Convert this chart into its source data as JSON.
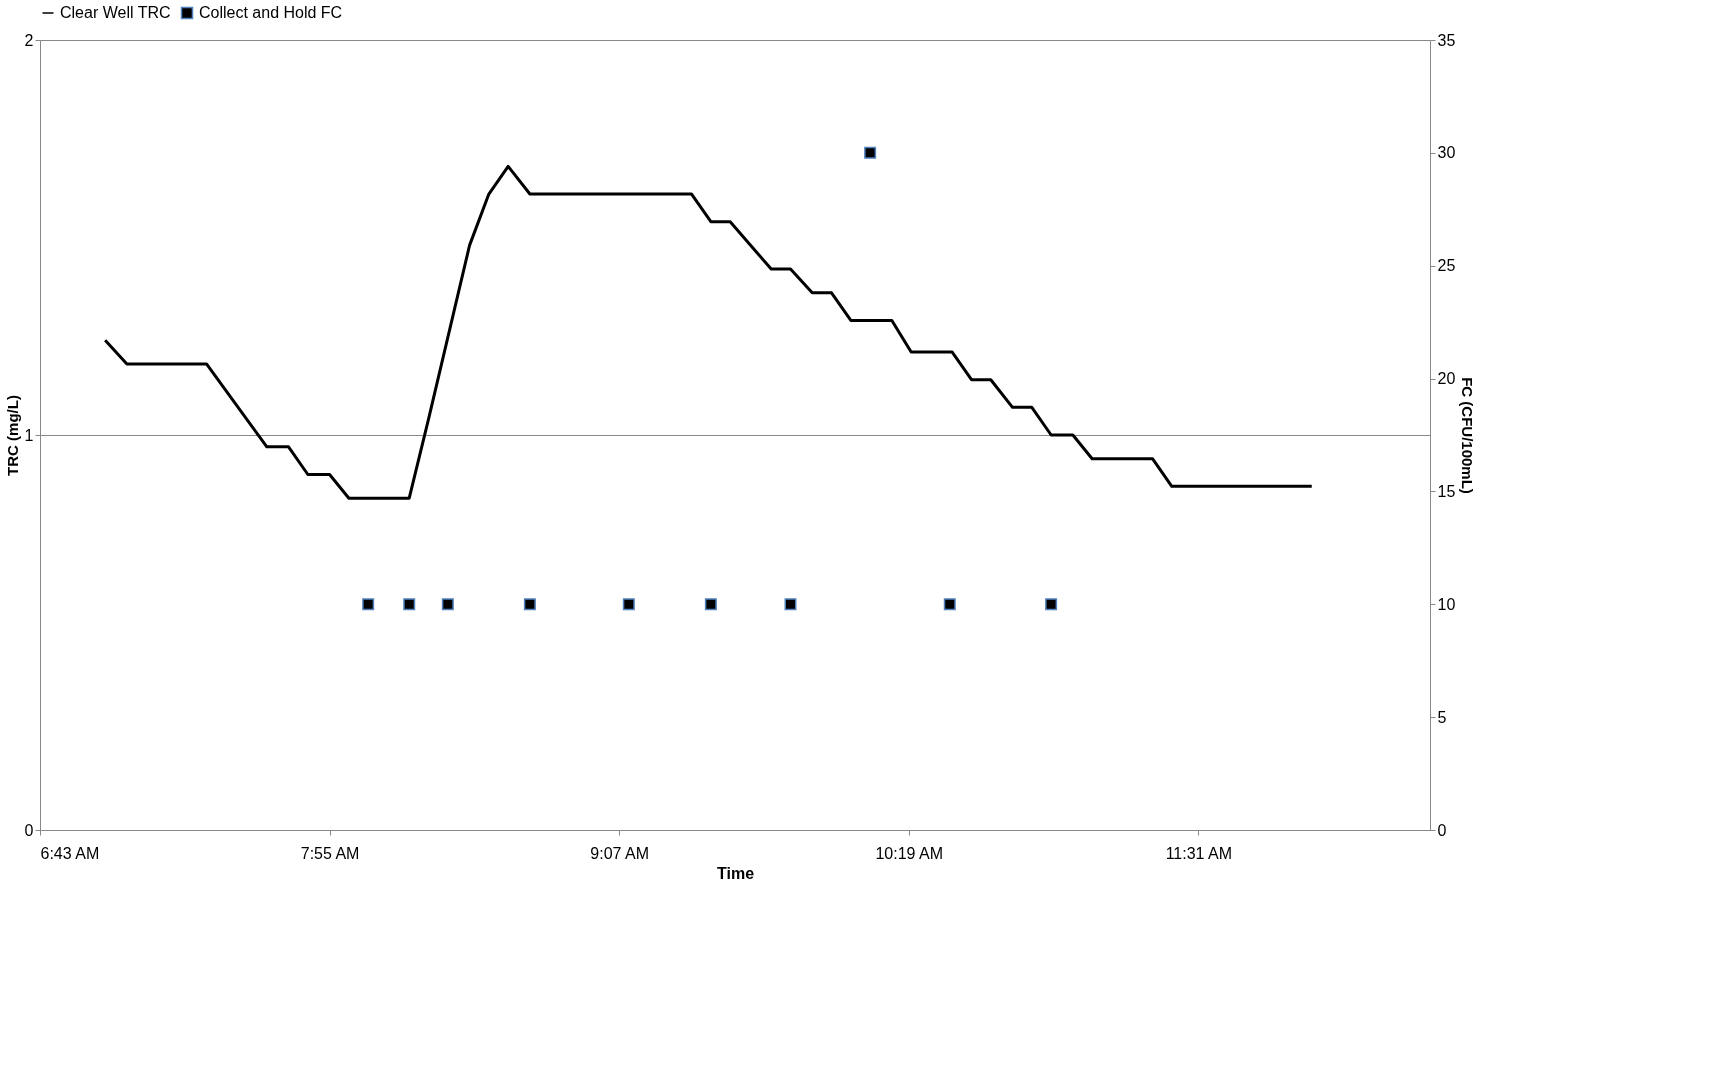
{
  "chart_data": {
    "type": "line",
    "xlabel": "Time",
    "ylabel": "TRC (mg/L)",
    "y2label": "FC (CFU/100mL)",
    "xlim": [
      6.72,
      12.48
    ],
    "xticks": [
      {
        "value": 6.72,
        "label": "6:43 AM"
      },
      {
        "value": 7.92,
        "label": "7:55 AM"
      },
      {
        "value": 9.12,
        "label": "9:07 AM"
      },
      {
        "value": 10.32,
        "label": "10:19 AM"
      },
      {
        "value": 11.52,
        "label": "11:31 AM"
      }
    ],
    "ylim": [
      0,
      2
    ],
    "yticks": [
      0,
      1,
      2
    ],
    "y2lim": [
      0,
      35
    ],
    "y2ticks": [
      0,
      5,
      10,
      15,
      20,
      25,
      30,
      35
    ],
    "grid": "y",
    "legend": "top",
    "line_style": "solid",
    "series": [
      {
        "name": "Clear Well TRC",
        "color": "#000000",
        "x": [
          6.99,
          7.08,
          7.41,
          7.66,
          7.75,
          7.83,
          7.92,
          8.0,
          8.25,
          8.33,
          8.5,
          8.58,
          8.66,
          8.75,
          9.42,
          9.5,
          9.58,
          9.75,
          9.83,
          9.92,
          10.0,
          10.08,
          10.25,
          10.33,
          10.5,
          10.58,
          10.66,
          10.75,
          10.83,
          10.91,
          11.0,
          11.08,
          11.33,
          11.41,
          11.99
        ],
        "values": [
          1.24,
          1.18,
          1.18,
          0.97,
          0.97,
          0.9,
          0.9,
          0.84,
          0.84,
          1.04,
          1.48,
          1.61,
          1.68,
          1.61,
          1.61,
          1.54,
          1.54,
          1.42,
          1.42,
          1.36,
          1.36,
          1.29,
          1.29,
          1.21,
          1.21,
          1.14,
          1.14,
          1.07,
          1.07,
          1.0,
          1.0,
          0.94,
          0.94,
          0.87,
          0.87
        ]
      },
      {
        "name": "Collect and Hold FC",
        "type": "scatter",
        "axis": "y2",
        "color": "#000000",
        "marker": "square",
        "x": [
          8.08,
          8.25,
          8.41,
          8.75,
          9.16,
          9.5,
          9.83,
          10.16,
          10.49,
          10.91
        ],
        "values": [
          10,
          10,
          10,
          10,
          10,
          10,
          10,
          30,
          10,
          10
        ]
      }
    ]
  }
}
